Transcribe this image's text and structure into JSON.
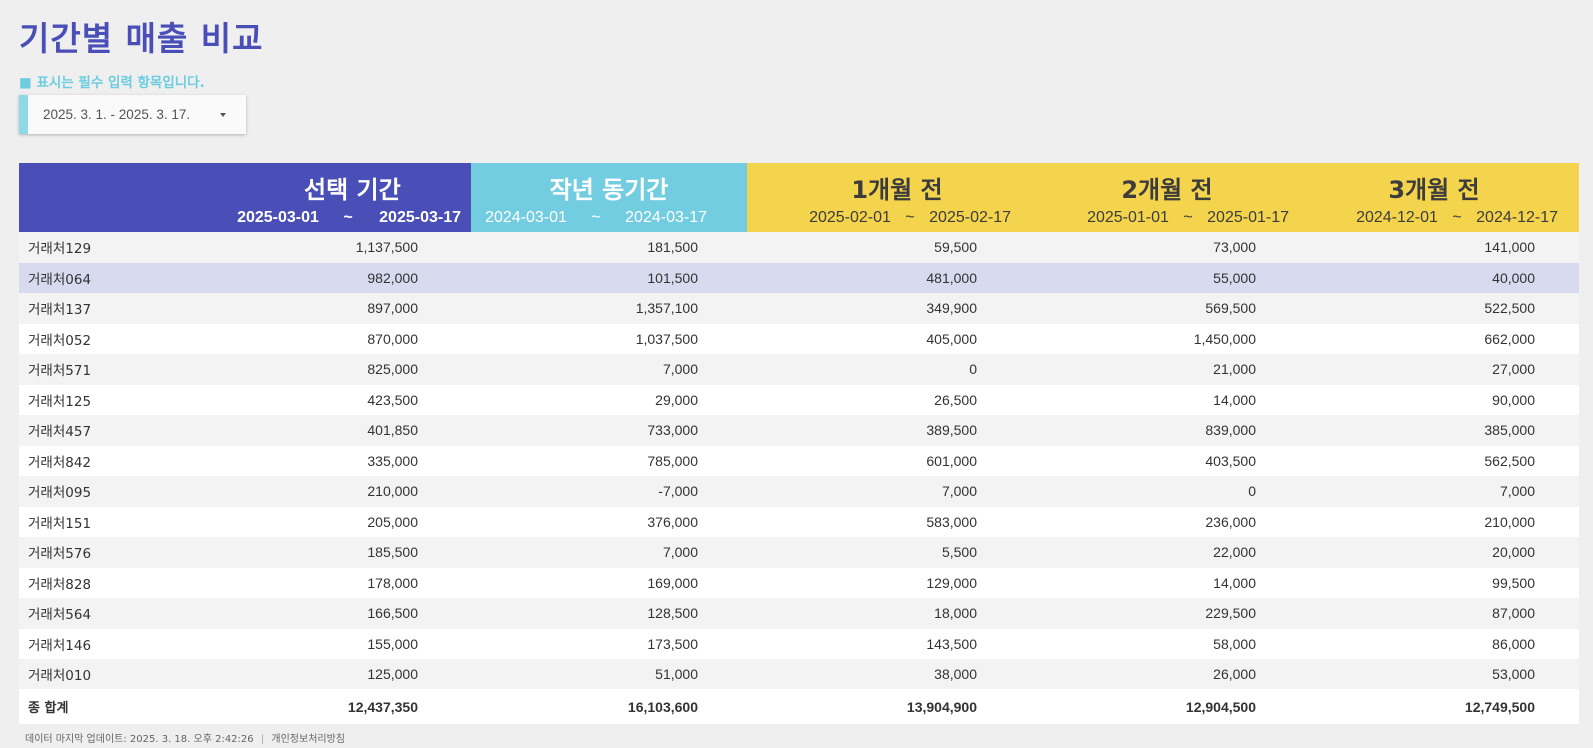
{
  "title": "기간별 매출 비교",
  "required_note": "■ 표시는 필수 입력 항목입니다.",
  "date_picker": {
    "value": "2025. 3. 1. - 2025. 3. 17."
  },
  "headers": {
    "selected": {
      "name": "선택 기간",
      "start": "2025-03-01",
      "sep": "~",
      "end": "2025-03-17"
    },
    "last_year": {
      "name": "작년 동기간",
      "start": "2024-03-01",
      "sep": "~",
      "end": "2024-03-17"
    },
    "m1": {
      "name": "1개월 전",
      "start": "2025-02-01",
      "sep": "~",
      "end": "2025-02-17"
    },
    "m2": {
      "name": "2개월 전",
      "start": "2025-01-01",
      "sep": "~",
      "end": "2025-01-17"
    },
    "m3": {
      "name": "3개월 전",
      "start": "2024-12-01",
      "sep": "~",
      "end": "2024-12-17"
    }
  },
  "colors": {
    "selected": "#4a4fb8",
    "last_year": "#73cde1",
    "prior_months": "#f4d44c",
    "highlight_row": "#d8daf0"
  },
  "rows": [
    {
      "name": "거래처129",
      "values": [
        "1,137,500",
        "181,500",
        "59,500",
        "73,000",
        "141,000"
      ]
    },
    {
      "name": "거래처064",
      "values": [
        "982,000",
        "101,500",
        "481,000",
        "55,000",
        "40,000"
      ]
    },
    {
      "name": "거래처137",
      "values": [
        "897,000",
        "1,357,100",
        "349,900",
        "569,500",
        "522,500"
      ]
    },
    {
      "name": "거래처052",
      "values": [
        "870,000",
        "1,037,500",
        "405,000",
        "1,450,000",
        "662,000"
      ]
    },
    {
      "name": "거래처571",
      "values": [
        "825,000",
        "7,000",
        "0",
        "21,000",
        "27,000"
      ]
    },
    {
      "name": "거래처125",
      "values": [
        "423,500",
        "29,000",
        "26,500",
        "14,000",
        "90,000"
      ]
    },
    {
      "name": "거래처457",
      "values": [
        "401,850",
        "733,000",
        "389,500",
        "839,000",
        "385,000"
      ]
    },
    {
      "name": "거래처842",
      "values": [
        "335,000",
        "785,000",
        "601,000",
        "403,500",
        "562,500"
      ]
    },
    {
      "name": "거래처095",
      "values": [
        "210,000",
        "-7,000",
        "7,000",
        "0",
        "7,000"
      ]
    },
    {
      "name": "거래처151",
      "values": [
        "205,000",
        "376,000",
        "583,000",
        "236,000",
        "210,000"
      ]
    },
    {
      "name": "거래처576",
      "values": [
        "185,500",
        "7,000",
        "5,500",
        "22,000",
        "20,000"
      ]
    },
    {
      "name": "거래처828",
      "values": [
        "178,000",
        "169,000",
        "129,000",
        "14,000",
        "99,500"
      ]
    },
    {
      "name": "거래처564",
      "values": [
        "166,500",
        "128,500",
        "18,000",
        "229,500",
        "87,000"
      ]
    },
    {
      "name": "거래처146",
      "values": [
        "155,000",
        "173,500",
        "143,500",
        "58,000",
        "86,000"
      ]
    },
    {
      "name": "거래처010",
      "values": [
        "125,000",
        "51,000",
        "38,000",
        "26,000",
        "53,000"
      ]
    }
  ],
  "highlighted_row": "거래처064",
  "total": {
    "label": "종 합계",
    "values": [
      "12,437,350",
      "16,103,600",
      "13,904,900",
      "12,904,500",
      "12,749,500"
    ]
  },
  "footer": {
    "updated": "데이터 마지막 업데이트: 2025. 3. 18. 오후 2:42:26",
    "sep": "|",
    "privacy": "개인정보처리방침"
  }
}
